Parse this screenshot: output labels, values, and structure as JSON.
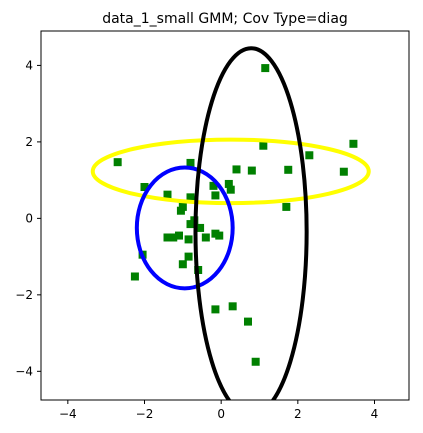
{
  "chart_data": {
    "type": "scatter",
    "title": "data_1_small GMM; Cov Type=diag",
    "xlabel": "",
    "ylabel": "",
    "xlim": [
      -4.7,
      4.9
    ],
    "ylim": [
      -4.75,
      4.9
    ],
    "xticks": [
      -4,
      -2,
      0,
      2,
      4
    ],
    "yticks": [
      -4,
      -2,
      0,
      2,
      4
    ],
    "grid": false,
    "marker_color": "#008000",
    "points": [
      [
        1.15,
        3.93
      ],
      [
        3.45,
        1.95
      ],
      [
        2.3,
        1.65
      ],
      [
        1.1,
        1.9
      ],
      [
        3.2,
        1.22
      ],
      [
        1.75,
        1.27
      ],
      [
        0.8,
        1.25
      ],
      [
        0.4,
        1.28
      ],
      [
        0.2,
        0.9
      ],
      [
        0.25,
        0.75
      ],
      [
        -0.2,
        0.85
      ],
      [
        -0.15,
        0.6
      ],
      [
        -0.8,
        1.45
      ],
      [
        -2.7,
        1.47
      ],
      [
        -2.0,
        0.82
      ],
      [
        -1.4,
        0.62
      ],
      [
        -0.8,
        0.55
      ],
      [
        -1.0,
        0.3
      ],
      [
        -1.05,
        0.2
      ],
      [
        -0.7,
        -0.05
      ],
      [
        -0.8,
        -0.15
      ],
      [
        -0.55,
        -0.25
      ],
      [
        -0.15,
        -0.4
      ],
      [
        -0.05,
        -0.45
      ],
      [
        -0.4,
        -0.5
      ],
      [
        -1.1,
        -0.45
      ],
      [
        -1.25,
        -0.5
      ],
      [
        -1.4,
        -0.5
      ],
      [
        -0.85,
        -0.55
      ],
      [
        -0.85,
        -1.0
      ],
      [
        -2.05,
        -0.95
      ],
      [
        -1.0,
        -1.2
      ],
      [
        -0.6,
        -1.35
      ],
      [
        -2.25,
        -1.52
      ],
      [
        1.7,
        0.3
      ],
      [
        -0.15,
        -2.38
      ],
      [
        0.3,
        -2.3
      ],
      [
        0.7,
        -2.7
      ],
      [
        0.9,
        -3.75
      ]
    ],
    "ellipses": [
      {
        "name": "",
        "color": "#ffff00",
        "cx": 0.25,
        "cy": 1.23,
        "rx": 3.6,
        "ry": 0.83
      },
      {
        "name": "",
        "color": "#0000ff",
        "cx": -0.95,
        "cy": -0.25,
        "rx": 1.25,
        "ry": 1.58
      },
      {
        "name": "",
        "color": "#000000",
        "cx": 0.78,
        "cy": -0.35,
        "rx": 1.45,
        "ry": 4.8
      }
    ]
  }
}
